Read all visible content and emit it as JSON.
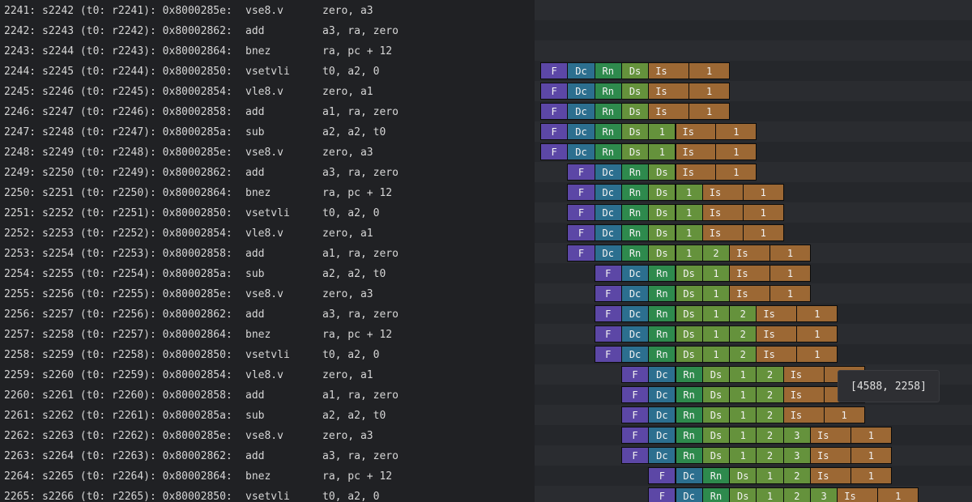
{
  "colors": {
    "F": "#5c47a6",
    "Dc": "#2c6f8f",
    "Rn": "#2e8a4d",
    "Ds": "#65923c",
    "wait": "#65923c",
    "Is": "#9c6834",
    "Is_count": "#9c6834"
  },
  "tooltip": {
    "text": "[4588, 2258]"
  },
  "instructions": [
    {
      "prefix": "2241: s2242 (t0: r2241): 0x8000285e:",
      "op": "vse8.v",
      "args": "zero, a3",
      "stages": []
    },
    {
      "prefix": "2242: s2243 (t0: r2242): 0x80002862:",
      "op": "add",
      "args": "a3, ra, zero",
      "stages": []
    },
    {
      "prefix": "2243: s2244 (t0: r2243): 0x80002864:",
      "op": "bnez",
      "args": "ra, pc + 12",
      "stages": []
    },
    {
      "prefix": "2244: s2245 (t0: r2244): 0x80002850:",
      "op": "vsetvli",
      "args": "t0, a2, 0",
      "start": 0,
      "stages": [
        "F",
        "Dc",
        "Rn",
        "Ds",
        "Is",
        "1"
      ]
    },
    {
      "prefix": "2245: s2246 (t0: r2245): 0x80002854:",
      "op": "vle8.v",
      "args": "zero, a1",
      "start": 0,
      "stages": [
        "F",
        "Dc",
        "Rn",
        "Ds",
        "Is",
        "1"
      ]
    },
    {
      "prefix": "2246: s2247 (t0: r2246): 0x80002858:",
      "op": "add",
      "args": "a1, ra, zero",
      "start": 0,
      "stages": [
        "F",
        "Dc",
        "Rn",
        "Ds",
        "Is",
        "1"
      ]
    },
    {
      "prefix": "2247: s2248 (t0: r2247): 0x8000285a:",
      "op": "sub",
      "args": "a2, a2, t0",
      "start": 0,
      "stages": [
        "F",
        "Dc",
        "Rn",
        "Ds",
        "1",
        "Is",
        "1"
      ]
    },
    {
      "prefix": "2248: s2249 (t0: r2248): 0x8000285e:",
      "op": "vse8.v",
      "args": "zero, a3",
      "start": 0,
      "stages": [
        "F",
        "Dc",
        "Rn",
        "Ds",
        "1",
        "Is",
        "1"
      ]
    },
    {
      "prefix": "2249: s2250 (t0: r2249): 0x80002862:",
      "op": "add",
      "args": "a3, ra, zero",
      "start": 1,
      "stages": [
        "F",
        "Dc",
        "Rn",
        "Ds",
        "Is",
        "1"
      ]
    },
    {
      "prefix": "2250: s2251 (t0: r2250): 0x80002864:",
      "op": "bnez",
      "args": "ra, pc + 12",
      "start": 1,
      "stages": [
        "F",
        "Dc",
        "Rn",
        "Ds",
        "1",
        "Is",
        "1"
      ]
    },
    {
      "prefix": "2251: s2252 (t0: r2251): 0x80002850:",
      "op": "vsetvli",
      "args": "t0, a2, 0",
      "start": 1,
      "stages": [
        "F",
        "Dc",
        "Rn",
        "Ds",
        "1",
        "Is",
        "1"
      ]
    },
    {
      "prefix": "2252: s2253 (t0: r2252): 0x80002854:",
      "op": "vle8.v",
      "args": "zero, a1",
      "start": 1,
      "stages": [
        "F",
        "Dc",
        "Rn",
        "Ds",
        "1",
        "Is",
        "1"
      ]
    },
    {
      "prefix": "2253: s2254 (t0: r2253): 0x80002858:",
      "op": "add",
      "args": "a1, ra, zero",
      "start": 1,
      "stages": [
        "F",
        "Dc",
        "Rn",
        "Ds",
        "1",
        "2",
        "Is",
        "1"
      ]
    },
    {
      "prefix": "2254: s2255 (t0: r2254): 0x8000285a:",
      "op": "sub",
      "args": "a2, a2, t0",
      "start": 2,
      "stages": [
        "F",
        "Dc",
        "Rn",
        "Ds",
        "1",
        "Is",
        "1"
      ]
    },
    {
      "prefix": "2255: s2256 (t0: r2255): 0x8000285e:",
      "op": "vse8.v",
      "args": "zero, a3",
      "start": 2,
      "stages": [
        "F",
        "Dc",
        "Rn",
        "Ds",
        "1",
        "Is",
        "1"
      ]
    },
    {
      "prefix": "2256: s2257 (t0: r2256): 0x80002862:",
      "op": "add",
      "args": "a3, ra, zero",
      "start": 2,
      "stages": [
        "F",
        "Dc",
        "Rn",
        "Ds",
        "1",
        "2",
        "Is",
        "1"
      ]
    },
    {
      "prefix": "2257: s2258 (t0: r2257): 0x80002864:",
      "op": "bnez",
      "args": "ra, pc + 12",
      "start": 2,
      "stages": [
        "F",
        "Dc",
        "Rn",
        "Ds",
        "1",
        "2",
        "Is",
        "1"
      ]
    },
    {
      "prefix": "2258: s2259 (t0: r2258): 0x80002850:",
      "op": "vsetvli",
      "args": "t0, a2, 0",
      "start": 2,
      "stages": [
        "F",
        "Dc",
        "Rn",
        "Ds",
        "1",
        "2",
        "Is",
        "1"
      ]
    },
    {
      "prefix": "2259: s2260 (t0: r2259): 0x80002854:",
      "op": "vle8.v",
      "args": "zero, a1",
      "start": 3,
      "stages": [
        "F",
        "Dc",
        "Rn",
        "Ds",
        "1",
        "2",
        "Is",
        "1"
      ]
    },
    {
      "prefix": "2260: s2261 (t0: r2260): 0x80002858:",
      "op": "add",
      "args": "a1, ra, zero",
      "start": 3,
      "stages": [
        "F",
        "Dc",
        "Rn",
        "Ds",
        "1",
        "2",
        "Is",
        "1"
      ]
    },
    {
      "prefix": "2261: s2262 (t0: r2261): 0x8000285a:",
      "op": "sub",
      "args": "a2, a2, t0",
      "start": 3,
      "stages": [
        "F",
        "Dc",
        "Rn",
        "Ds",
        "1",
        "2",
        "Is",
        "1"
      ]
    },
    {
      "prefix": "2262: s2263 (t0: r2262): 0x8000285e:",
      "op": "vse8.v",
      "args": "zero, a3",
      "start": 3,
      "stages": [
        "F",
        "Dc",
        "Rn",
        "Ds",
        "1",
        "2",
        "3",
        "Is",
        "1"
      ]
    },
    {
      "prefix": "2263: s2264 (t0: r2263): 0x80002862:",
      "op": "add",
      "args": "a3, ra, zero",
      "start": 3,
      "stages": [
        "F",
        "Dc",
        "Rn",
        "Ds",
        "1",
        "2",
        "3",
        "Is",
        "1"
      ]
    },
    {
      "prefix": "2264: s2265 (t0: r2264): 0x80002864:",
      "op": "bnez",
      "args": "ra, pc + 12",
      "start": 4,
      "stages": [
        "F",
        "Dc",
        "Rn",
        "Ds",
        "1",
        "2",
        "Is",
        "1"
      ]
    },
    {
      "prefix": "2265: s2266 (t0: r2265): 0x80002850:",
      "op": "vsetvli",
      "args": "t0, a2, 0",
      "start": 4,
      "stages": [
        "F",
        "Dc",
        "Rn",
        "Ds",
        "1",
        "2",
        "3",
        "Is",
        "1"
      ]
    }
  ]
}
